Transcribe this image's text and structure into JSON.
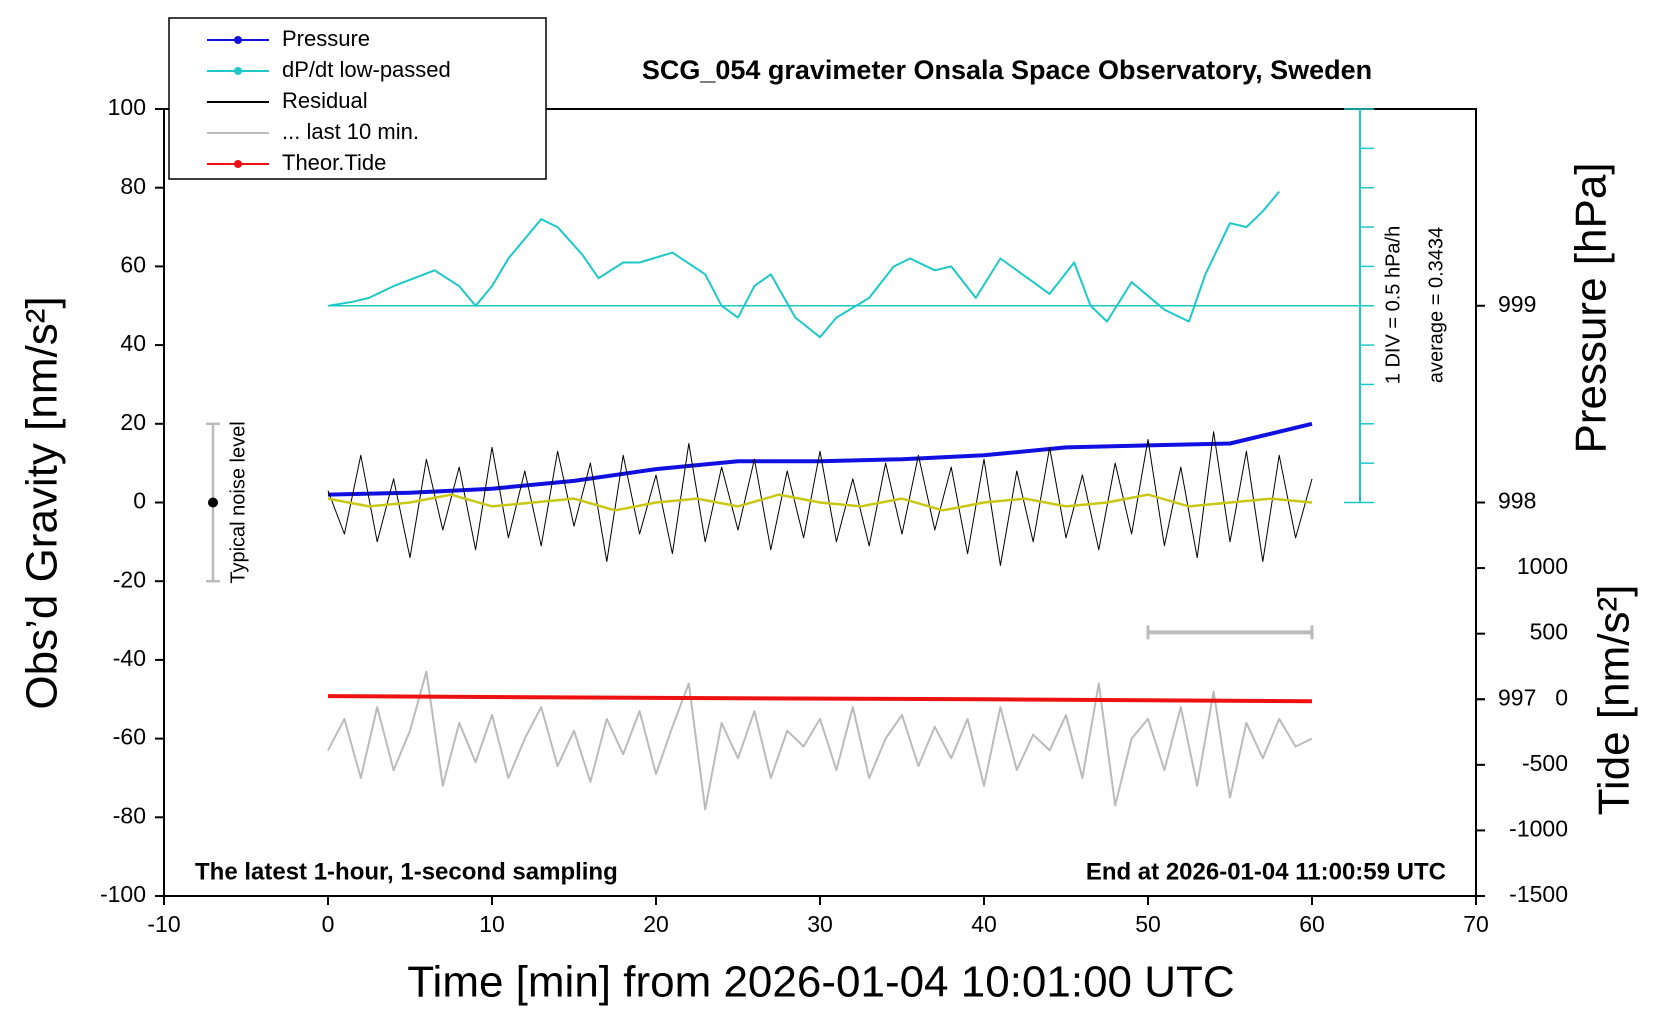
{
  "chart_data": {
    "type": "line",
    "title": "SCG_054 gravimeter Onsala Space Observatory, Sweden",
    "xlabel": "Time [min] from 2026-01-04 10:01:00 UTC",
    "ylabel": "Obs’d Gravity [nm/s²]",
    "y2label": "Pressure [hPa]",
    "y3label": "Tide [nm/s²]",
    "xlim": [
      -10,
      70
    ],
    "xticks": [
      -10,
      0,
      10,
      20,
      30,
      40,
      50,
      60,
      70
    ],
    "ylim": [
      -100,
      100
    ],
    "yticks": [
      -100,
      -80,
      -60,
      -40,
      -20,
      0,
      20,
      40,
      60,
      80,
      100
    ],
    "y2lim": [
      996,
      1000
    ],
    "y2ticks": [
      997,
      998,
      999
    ],
    "y3lim": [
      -1500,
      4500
    ],
    "y3ticks": [
      -1500,
      -1000,
      -500,
      0,
      500,
      1000
    ],
    "notes": [
      "The latest 1-hour, 1-second sampling",
      "End at 2026-01-04 11:00:59 UTC"
    ],
    "pressure_notes": [
      "1 DIV = 0.5 hPa/h",
      "average = 0.3434"
    ],
    "noise_level": {
      "label": "Typical noise level",
      "center": 0,
      "half_range": 20
    },
    "cyan_axis": {
      "ticks": [
        0,
        10,
        20,
        30,
        40,
        50,
        60,
        70,
        80,
        90,
        100
      ],
      "baseline": 50,
      "color": "#1ec8c8"
    },
    "scale_bar": {
      "x": [
        50,
        60
      ],
      "y": -33,
      "color": "#bbbbbb"
    },
    "series": [
      {
        "name": "Pressure",
        "color": "#1010e0",
        "axis": "y2",
        "marker": true,
        "width": 4,
        "x": [
          0,
          5,
          10,
          15,
          20,
          25,
          30,
          35,
          40,
          45,
          50,
          55,
          60
        ],
        "values": [
          998.04,
          998.05,
          998.07,
          998.11,
          998.17,
          998.21,
          998.21,
          998.22,
          998.24,
          998.28,
          998.29,
          998.3,
          998.4
        ]
      },
      {
        "name": "dP/dt low-passed",
        "color": "#1ec8c8",
        "axis": "y",
        "marker": true,
        "width": 2,
        "x": [
          0,
          1.5,
          2.5,
          4,
          6.5,
          8,
          9,
          10,
          11,
          13,
          14,
          15.5,
          16.5,
          18,
          19,
          21,
          23,
          24,
          25,
          26,
          27,
          28.5,
          30,
          31,
          33,
          34.5,
          35.5,
          37,
          38,
          39.5,
          41,
          43,
          44,
          45.5,
          46.5,
          47.5,
          49,
          51,
          52.5,
          53.5,
          55,
          56,
          57,
          58
        ],
        "values": [
          50,
          51,
          52,
          55,
          59,
          55,
          50,
          55,
          62,
          72,
          70,
          63,
          57,
          61,
          61,
          63.5,
          58,
          50,
          47,
          55,
          58,
          47,
          42,
          47,
          52,
          60,
          62,
          59,
          60,
          52,
          62,
          56,
          53,
          61,
          50,
          46,
          56,
          49,
          46,
          58,
          71,
          70,
          74,
          79
        ]
      },
      {
        "name": "Residual",
        "color": "#000000",
        "axis": "y",
        "marker": false,
        "width": 1,
        "x": [
          0,
          1,
          2,
          3,
          4,
          5,
          6,
          7,
          8,
          9,
          10,
          11,
          12,
          13,
          14,
          15,
          16,
          17,
          18,
          19,
          20,
          21,
          22,
          23,
          24,
          25,
          26,
          27,
          28,
          29,
          30,
          31,
          32,
          33,
          34,
          35,
          36,
          37,
          38,
          39,
          40,
          41,
          42,
          43,
          44,
          45,
          46,
          47,
          48,
          49,
          50,
          51,
          52,
          53,
          54,
          55,
          56,
          57,
          58,
          59,
          60
        ],
        "values": [
          3,
          -8,
          12,
          -10,
          6,
          -14,
          11,
          -7,
          9,
          -12,
          14,
          -9,
          8,
          -11,
          13,
          -6,
          10,
          -15,
          12,
          -8,
          7,
          -13,
          15,
          -10,
          9,
          -7,
          11,
          -12,
          8,
          -9,
          13,
          -10,
          6,
          -11,
          10,
          -8,
          12,
          -7,
          9,
          -13,
          11,
          -16,
          8,
          -10,
          14,
          -9,
          7,
          -12,
          10,
          -8,
          16,
          -11,
          9,
          -14,
          18,
          -10,
          13,
          -15,
          12,
          -9,
          6
        ]
      },
      {
        "name": "... last 10 min.",
        "color": "#bbbbbb",
        "axis": "y",
        "marker": false,
        "width": 2,
        "x": [
          0,
          1,
          2,
          3,
          4,
          5,
          6,
          7,
          8,
          9,
          10,
          11,
          12,
          13,
          14,
          15,
          16,
          17,
          18,
          19,
          20,
          21,
          22,
          23,
          24,
          25,
          26,
          27,
          28,
          29,
          30,
          31,
          32,
          33,
          34,
          35,
          36,
          37,
          38,
          39,
          40,
          41,
          42,
          43,
          44,
          45,
          46,
          47,
          48,
          49,
          50,
          51,
          52,
          53,
          54,
          55,
          56,
          57,
          58,
          59,
          60
        ],
        "values": [
          -63,
          -55,
          -70,
          -52,
          -68,
          -58,
          -43,
          -72,
          -56,
          -66,
          -54,
          -70,
          -60,
          -52,
          -67,
          -58,
          -71,
          -55,
          -64,
          -53,
          -69,
          -57,
          -46,
          -78,
          -56,
          -65,
          -53,
          -70,
          -58,
          -62,
          -55,
          -68,
          -52,
          -70,
          -60,
          -54,
          -67,
          -57,
          -65,
          -55,
          -72,
          -52,
          -68,
          -59,
          -63,
          -54,
          -70,
          -46,
          -77,
          -60,
          -55,
          -68,
          -52,
          -72,
          -48,
          -75,
          -56,
          -65,
          -55,
          -62,
          -60
        ]
      },
      {
        "name": "Theor.Tide",
        "color": "#ee1111",
        "axis": "y3",
        "marker": true,
        "width": 4,
        "x": [
          0,
          20,
          40,
          60
        ],
        "values": [
          24,
          10,
          0,
          -15
        ]
      }
    ],
    "smoothed": {
      "color": "#c8c814",
      "x": [
        0,
        2.5,
        5,
        7.5,
        10,
        12.5,
        15,
        17.5,
        20,
        22.5,
        25,
        27.5,
        30,
        32.5,
        35,
        37.5,
        40,
        42.5,
        45,
        47.5,
        50,
        52.5,
        55,
        57.5,
        60
      ],
      "values": [
        1,
        -1,
        0,
        2,
        -1,
        0,
        1,
        -2,
        0,
        1,
        -1,
        2,
        0,
        -1,
        1,
        -2,
        0,
        1,
        -1,
        0,
        2,
        -1,
        0,
        1,
        0
      ]
    }
  }
}
